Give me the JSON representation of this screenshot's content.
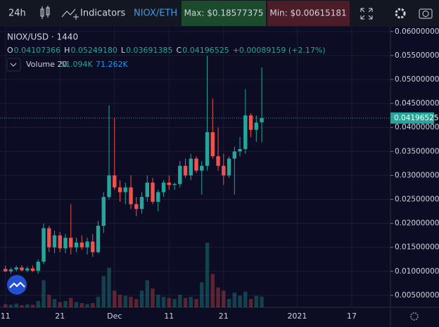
{
  "toolbar": {
    "interval": "24h",
    "indicators": "Indicators",
    "pair": "NIOX/ETH",
    "max": "Max: $0.18577375",
    "min": "Min: $0.00615181"
  },
  "legend": {
    "symbol": "NIOX/USD · 1440",
    "ohlc": [
      {
        "key": "O",
        "value": "0.04107366"
      },
      {
        "key": "H",
        "value": "0.05249180"
      },
      {
        "key": "L",
        "value": "0.03691385"
      },
      {
        "key": "C",
        "value": "0.04196525"
      }
    ],
    "change": "+0.00089159 (+2.17%)",
    "volume_label": "Volume 20",
    "volume_values": [
      "51.094K",
      "71.262K"
    ]
  },
  "chart_data": {
    "type": "candlestick",
    "open": [
      0.0105,
      0.01,
      0.0104,
      0.0108,
      0.0102,
      0.0106,
      0.0101,
      0.012,
      0.019,
      0.015,
      0.0175,
      0.0148,
      0.017,
      0.015,
      0.016,
      0.015,
      0.0162,
      0.014,
      0.0195,
      0.0255,
      0.03,
      0.0275,
      0.0265,
      0.0275,
      0.024,
      0.023,
      0.0255,
      0.0285,
      0.0245,
      0.0265,
      0.0285,
      0.028,
      0.0282,
      0.032,
      0.03,
      0.0335,
      0.031,
      0.032,
      0.039,
      0.034,
      0.032,
      0.03,
      0.0335,
      0.035,
      0.0355,
      0.0425,
      0.0395,
      0.04107366
    ],
    "high": [
      0.0112,
      0.0108,
      0.0112,
      0.0113,
      0.011,
      0.0112,
      0.0125,
      0.02,
      0.0195,
      0.0185,
      0.0182,
      0.0178,
      0.024,
      0.017,
      0.0175,
      0.017,
      0.0178,
      0.0205,
      0.0265,
      0.0446,
      0.042,
      0.029,
      0.0285,
      0.03,
      0.0255,
      0.0265,
      0.03,
      0.0295,
      0.027,
      0.029,
      0.03,
      0.0285,
      0.033,
      0.0335,
      0.0345,
      0.034,
      0.033,
      0.0549,
      0.046,
      0.04,
      0.0345,
      0.034,
      0.036,
      0.038,
      0.048,
      0.043,
      0.0425,
      0.0524918
    ],
    "low": [
      0.0098,
      0.0095,
      0.01,
      0.01,
      0.0098,
      0.0099,
      0.0095,
      0.0115,
      0.014,
      0.0138,
      0.014,
      0.0138,
      0.0135,
      0.014,
      0.0145,
      0.0135,
      0.013,
      0.0138,
      0.018,
      0.025,
      0.027,
      0.0245,
      0.024,
      0.023,
      0.0215,
      0.022,
      0.0245,
      0.024,
      0.0225,
      0.0255,
      0.027,
      0.027,
      0.0275,
      0.0295,
      0.029,
      0.0305,
      0.026,
      0.031,
      0.0335,
      0.031,
      0.028,
      0.0295,
      0.026,
      0.034,
      0.0345,
      0.038,
      0.037,
      0.03691385
    ],
    "close": [
      0.01,
      0.0104,
      0.0108,
      0.0102,
      0.0106,
      0.0101,
      0.012,
      0.019,
      0.015,
      0.0175,
      0.0148,
      0.017,
      0.015,
      0.016,
      0.015,
      0.0162,
      0.014,
      0.0195,
      0.0255,
      0.03,
      0.0275,
      0.0265,
      0.0275,
      0.024,
      0.023,
      0.0255,
      0.0285,
      0.0245,
      0.0265,
      0.0285,
      0.028,
      0.0282,
      0.032,
      0.03,
      0.0335,
      0.031,
      0.032,
      0.039,
      0.034,
      0.032,
      0.03,
      0.0335,
      0.035,
      0.0355,
      0.0425,
      0.0395,
      0.041,
      0.04196525
    ],
    "volume": [
      15,
      12,
      18,
      10,
      14,
      12,
      30,
      130,
      60,
      40,
      25,
      30,
      45,
      25,
      20,
      15,
      20,
      50,
      150,
      190,
      80,
      60,
      55,
      50,
      40,
      80,
      130,
      90,
      60,
      50,
      45,
      40,
      60,
      45,
      50,
      40,
      120,
      310,
      160,
      95,
      80,
      40,
      70,
      55,
      75,
      40,
      55,
      51.094
    ],
    "up_color": "#26a69a",
    "down_color": "#ef5350",
    "ylim": [
      0.0025,
      0.061
    ],
    "yticks": [
      {
        "value": 0.005,
        "label": "0.00500000"
      },
      {
        "value": 0.01,
        "label": "0.01000000"
      },
      {
        "value": 0.015,
        "label": "0.01500000"
      },
      {
        "value": 0.02,
        "label": "0.02000000"
      },
      {
        "value": 0.025,
        "label": "0.02500000"
      },
      {
        "value": 0.03,
        "label": "0.03000000"
      },
      {
        "value": 0.035,
        "label": "0.03500000"
      },
      {
        "value": 0.04,
        "label": "0.04000000"
      },
      {
        "value": 0.045,
        "label": "0.04500000"
      },
      {
        "value": 0.05,
        "label": "0.05000000"
      },
      {
        "value": 0.055,
        "label": "0.05500000"
      },
      {
        "value": 0.06,
        "label": "0.06000000"
      }
    ],
    "xlim": [
      -1,
      70.6
    ],
    "xticks": [
      {
        "value": 0,
        "label": "11"
      },
      {
        "value": 10,
        "label": "21"
      },
      {
        "value": 20,
        "label": "Dec"
      },
      {
        "value": 30,
        "label": "11"
      },
      {
        "value": 40,
        "label": "21"
      },
      {
        "value": 53.5,
        "label": "2021"
      },
      {
        "value": 63.5,
        "label": "17"
      }
    ],
    "last_price": {
      "value": 0.04196525,
      "label": "0.04196525"
    },
    "grid": true
  }
}
